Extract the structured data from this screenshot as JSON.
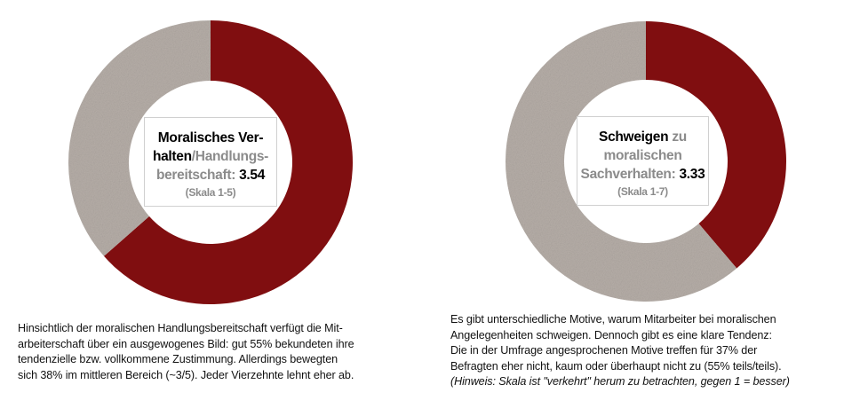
{
  "chart_data": [
    {
      "type": "pie",
      "style": "donut",
      "series": [
        {
          "name": "score",
          "value": 63.5,
          "color": "#800e10"
        },
        {
          "name": "rest",
          "value": 36.5,
          "color": "#b6aea8"
        }
      ],
      "title_parts": [
        "Moralisches Ver-",
        "halten",
        "/Handlungs-",
        "bereitschaft:",
        "3.54"
      ],
      "scale": "(Skala 1-5)"
    },
    {
      "type": "pie",
      "style": "donut",
      "series": [
        {
          "name": "score",
          "value": 38.8,
          "color": "#800e10"
        },
        {
          "name": "rest",
          "value": 61.2,
          "color": "#b6aea8"
        }
      ],
      "title_parts": [
        "Schweigen",
        "zu",
        "moralischen",
        "Sachverhalten:",
        "3.33"
      ],
      "scale": "(Skala 1-7)"
    }
  ],
  "text_left": [
    "Hinsichtlich der moralischen Handlungsbereitschaft verfügt die Mit-",
    "arbeiterschaft über ein ausgewogenes Bild: gut 55% bekundeten ihre",
    "tendenzielle bzw. vollkommene Zustimmung. Allerdings bewegten",
    "sich 38% im mittleren Bereich (~3/5). Jeder Vierzehnte lehnt eher ab."
  ],
  "text_right": [
    "Es gibt unterschiedliche Motive, warum Mitarbeiter bei moralischen",
    "Angelegenheiten schweigen. Dennoch gibt es eine klare Tendenz:",
    "Die in der Umfrage angesprochenen Motive treffen für 37% der",
    "Befragten eher nicht, kaum oder überhaupt nicht zu (55% teils/teils)."
  ],
  "text_right_note": "(Hinweis: Skala ist \"verkehrt\" herum zu betrachten, gegen 1 = besser)"
}
